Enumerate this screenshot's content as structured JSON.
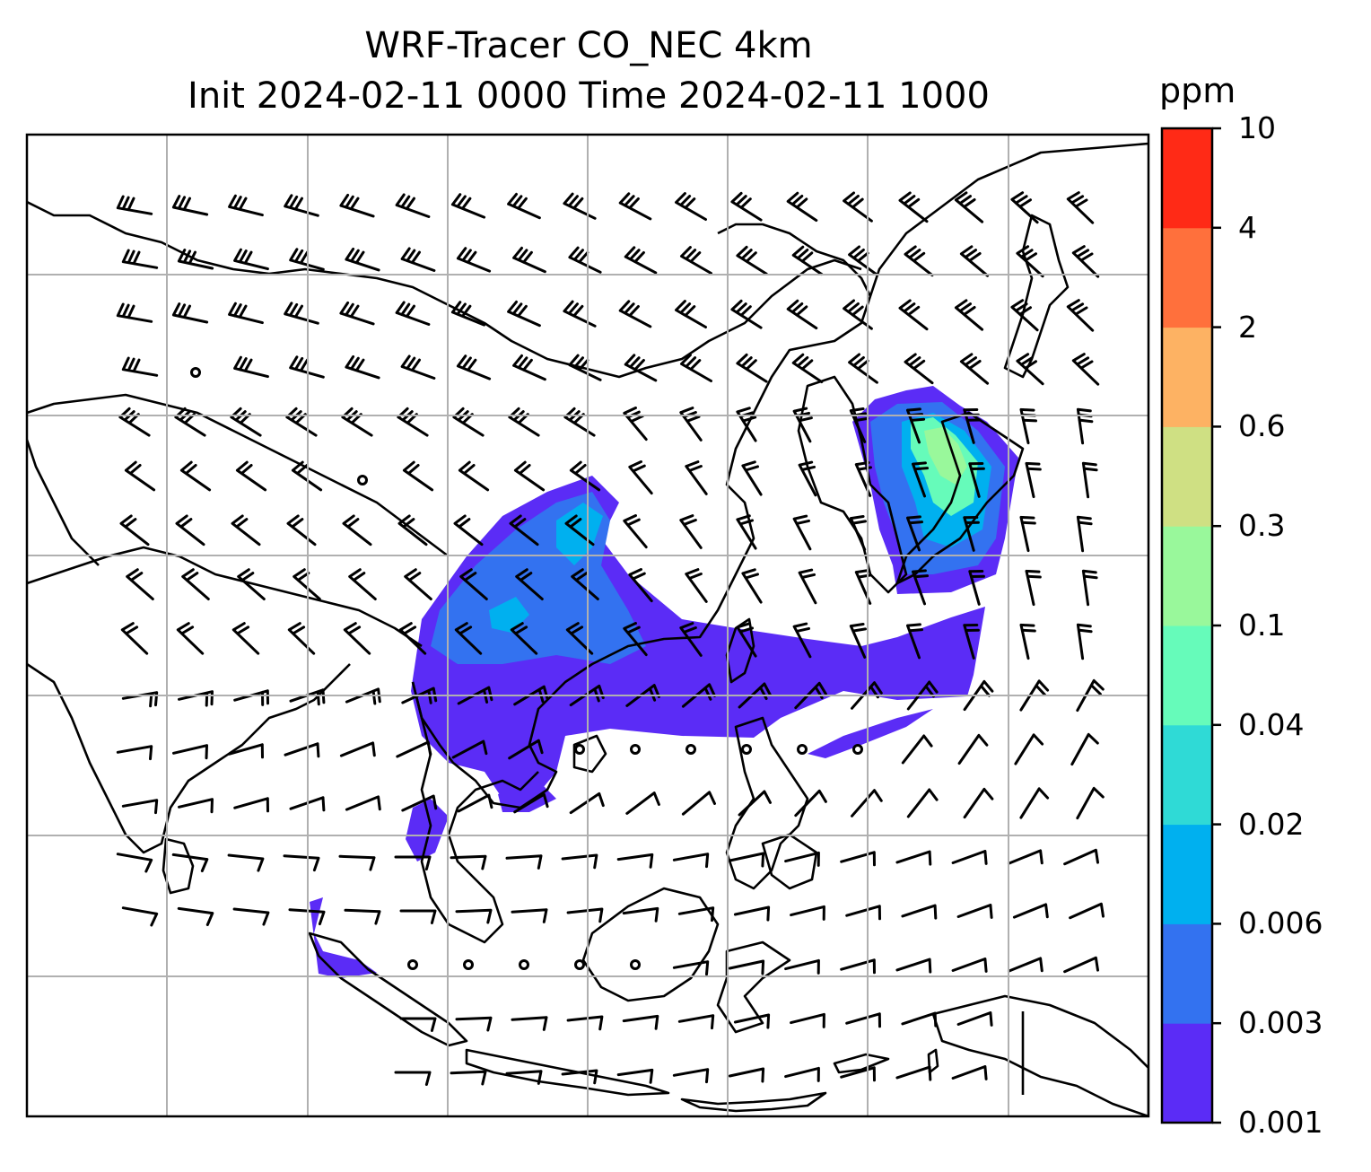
{
  "title": {
    "line1": "WRF-Tracer CO_NEC 4km",
    "line2": "Init 2024-02-11 0000 Time 2024-02-11 1000"
  },
  "colorbar": {
    "unit": "ppm",
    "ticks": [
      "0.001",
      "0.003",
      "0.006",
      "0.02",
      "0.04",
      "0.1",
      "0.3",
      "0.6",
      "2",
      "4",
      "10"
    ],
    "colors": [
      "#5b2cf6",
      "#3372f0",
      "#00b0ef",
      "#2fdad6",
      "#66fbba",
      "#99f89b",
      "#cfe083",
      "#fdb263",
      "#ff703c",
      "#ff2a16"
    ]
  },
  "map": {
    "gridlines": true,
    "coastline_color": "#000000",
    "plume_colors": {
      "low": "#5b2cf6",
      "mid": "#3372f0",
      "high": "#00b0ef",
      "peak": "#66fbba"
    }
  }
}
